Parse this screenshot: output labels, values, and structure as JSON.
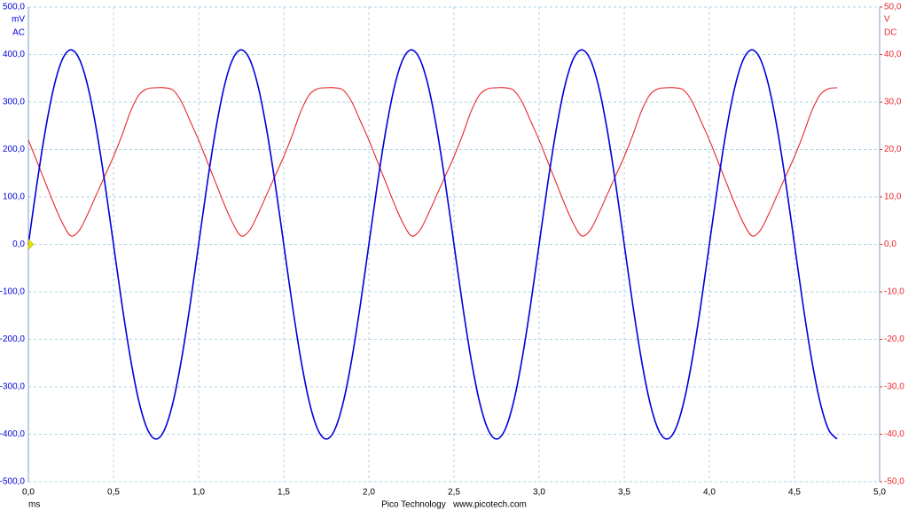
{
  "chart_data": {
    "type": "line",
    "y_label": "mV",
    "y2_label": "V",
    "x_label": "ms",
    "footer": "Pico Technology   www.picotech.com",
    "grid": true,
    "xlim": [
      0,
      5
    ],
    "xticks": [
      {
        "value": 0,
        "label": "0,0"
      },
      {
        "value": 0.5,
        "label": "0,5"
      },
      {
        "value": 1,
        "label": "1,0"
      },
      {
        "value": 1.5,
        "label": "1,5"
      },
      {
        "value": 2,
        "label": "2,0"
      },
      {
        "value": 2.5,
        "label": "2,5"
      },
      {
        "value": 3,
        "label": "3,0"
      },
      {
        "value": 3.5,
        "label": "3,5"
      },
      {
        "value": 4,
        "label": "4,0"
      },
      {
        "value": 4.5,
        "label": "4,5"
      },
      {
        "value": 5,
        "label": "5,0"
      }
    ],
    "ylim": [
      -500,
      500
    ],
    "yticks": [
      {
        "value": 500,
        "label": "500,0"
      },
      {
        "value": 400,
        "label": "400,0"
      },
      {
        "value": 300,
        "label": "300,0"
      },
      {
        "value": 200,
        "label": "200,0"
      },
      {
        "value": 100,
        "label": "100,0"
      },
      {
        "value": 0,
        "label": "0,0"
      },
      {
        "value": -100,
        "label": "-100,0"
      },
      {
        "value": -200,
        "label": "-200,0"
      },
      {
        "value": -300,
        "label": "-300,0"
      },
      {
        "value": -400,
        "label": "-400,0"
      },
      {
        "value": -500,
        "label": "-500,0"
      }
    ],
    "y2lim": [
      -50,
      50
    ],
    "y2ticks": [
      {
        "value": 50,
        "label": "50,0"
      },
      {
        "value": 40,
        "label": "40,0"
      },
      {
        "value": 30,
        "label": "30,0"
      },
      {
        "value": 20,
        "label": "20,0"
      },
      {
        "value": 10,
        "label": "10,0"
      },
      {
        "value": 0,
        "label": "0,0"
      },
      {
        "value": -10,
        "label": "-10,0"
      },
      {
        "value": -20,
        "label": "-20,0"
      },
      {
        "value": -30,
        "label": "-30,0"
      },
      {
        "value": -40,
        "label": "-40,0"
      },
      {
        "value": -50,
        "label": "-50,0"
      }
    ],
    "x": [
      0,
      0.05,
      0.1,
      0.15,
      0.2,
      0.25,
      0.3,
      0.35,
      0.4,
      0.45,
      0.5,
      0.55,
      0.6,
      0.65,
      0.7,
      0.75,
      0.8,
      0.85,
      0.9,
      0.95,
      1,
      1.05,
      1.1,
      1.15,
      1.2,
      1.25,
      1.3,
      1.35,
      1.4,
      1.45,
      1.5,
      1.55,
      1.6,
      1.65,
      1.7,
      1.75,
      1.8,
      1.85,
      1.9,
      1.95,
      2,
      2.05,
      2.1,
      2.15,
      2.2,
      2.25,
      2.3,
      2.35,
      2.4,
      2.45,
      2.5,
      2.55,
      2.6,
      2.65,
      2.7,
      2.75,
      2.8,
      2.85,
      2.9,
      2.95,
      3,
      3.05,
      3.1,
      3.15,
      3.2,
      3.25,
      3.3,
      3.35,
      3.4,
      3.45,
      3.5,
      3.55,
      3.6,
      3.65,
      3.7,
      3.75,
      3.8,
      3.85,
      3.9,
      3.95,
      4,
      4.05,
      4.1,
      4.15,
      4.2,
      4.25,
      4.3,
      4.35,
      4.4,
      4.45,
      4.5,
      4.55,
      4.6,
      4.65,
      4.7,
      4.75
    ],
    "series": [
      {
        "name": "AC",
        "color": "#0000dd",
        "values": [
          0,
          127,
          241,
          332,
          390,
          410,
          390,
          332,
          241,
          127,
          0,
          -127,
          -241,
          -332,
          -390,
          -410,
          -390,
          -332,
          -241,
          -127,
          0,
          127,
          241,
          332,
          390,
          410,
          390,
          332,
          241,
          127,
          0,
          -127,
          -241,
          -332,
          -390,
          -410,
          -390,
          -332,
          -241,
          -127,
          0,
          127,
          241,
          332,
          390,
          410,
          390,
          332,
          241,
          127,
          0,
          -127,
          -241,
          -332,
          -390,
          -410,
          -390,
          -332,
          -241,
          -127,
          0,
          127,
          241,
          332,
          390,
          410,
          390,
          332,
          241,
          127,
          0,
          -127,
          -241,
          -332,
          -390,
          -410,
          -390,
          -332,
          -241,
          -127,
          0,
          127,
          241,
          332,
          390,
          410,
          390,
          332,
          241,
          127,
          0,
          -127,
          -241,
          -332,
          -390,
          -410
        ]
      },
      {
        "name": "DC",
        "color": "#e8262a",
        "axis": "y2",
        "values": [
          22,
          17.5,
          13,
          8.5,
          4.5,
          1.8,
          3,
          6.5,
          10.5,
          14.5,
          18.5,
          23,
          28,
          31.5,
          32.8,
          33,
          33,
          32.5,
          30,
          26,
          22,
          17.5,
          13,
          8.5,
          4.5,
          1.8,
          3,
          6.5,
          10.5,
          14.5,
          18.5,
          23,
          28,
          31.5,
          32.8,
          33,
          33,
          32.5,
          30,
          26,
          22,
          17.5,
          13,
          8.5,
          4.5,
          1.8,
          3,
          6.5,
          10.5,
          14.5,
          18.5,
          23,
          28,
          31.5,
          32.8,
          33,
          33,
          32.5,
          30,
          26,
          22,
          17.5,
          13,
          8.5,
          4.5,
          1.8,
          3,
          6.5,
          10.5,
          14.5,
          18.5,
          23,
          28,
          31.5,
          32.8,
          33,
          33,
          32.5,
          30,
          26,
          22,
          17.5,
          13,
          8.5,
          4.5,
          1.8,
          3,
          6.5,
          10.5,
          14.5,
          18.5,
          23,
          28,
          31.5,
          32.8,
          33
        ]
      }
    ]
  }
}
